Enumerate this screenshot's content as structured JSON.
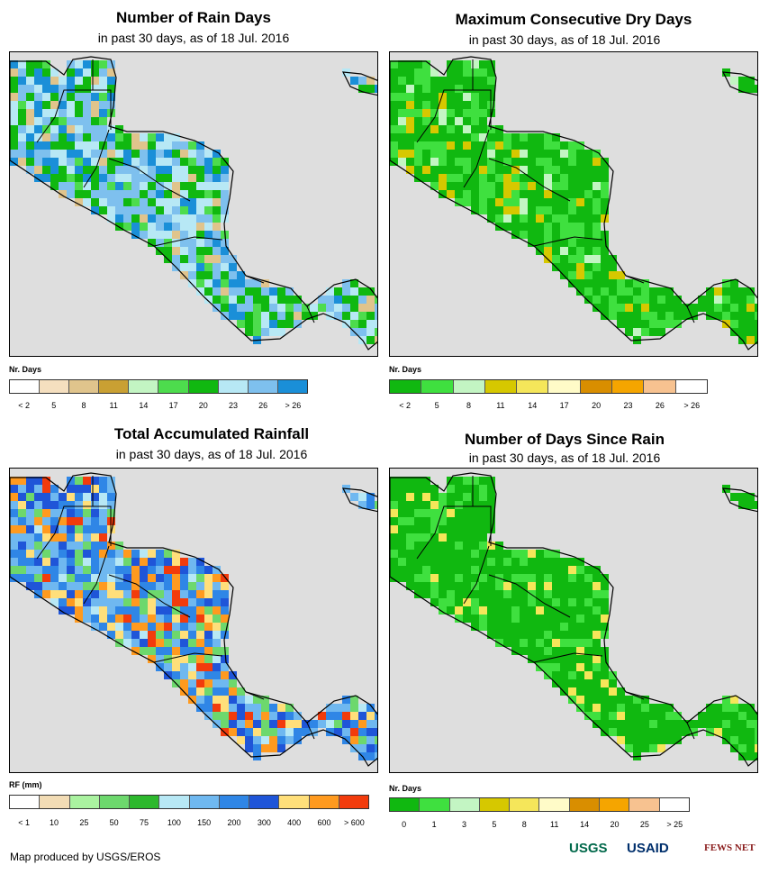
{
  "panels": [
    {
      "title": "Number of Rain Days",
      "subtitle": "in past 30 days, as of 18 Jul. 2016",
      "legend_title": "Nr. Days",
      "legend_labels": [
        "< 2",
        "5",
        "8",
        "11",
        "14",
        "17",
        "20",
        "23",
        "26",
        "> 26"
      ],
      "legend_colors": [
        "#ffffff",
        "#f5dfbf",
        "#e0c48c",
        "#c9a033",
        "#c3f5c3",
        "#4ddc4d",
        "#10b810",
        "#b7e8f5",
        "#7ec0ee",
        "#1a8fd8"
      ],
      "land_palette": [
        "#10b810",
        "#7ec0ee",
        "#b7e8f5",
        "#1a8fd8",
        "#4ddc4d",
        "#e0c48c"
      ],
      "land_weights": [
        3,
        3,
        3,
        2,
        1,
        1
      ]
    },
    {
      "title": "Maximum Consecutive Dry Days",
      "subtitle": "in past 30 days, as of 18 Jul. 2016",
      "legend_title": "Nr. Days",
      "legend_labels": [
        "< 2",
        "5",
        "8",
        "11",
        "14",
        "17",
        "20",
        "23",
        "26",
        "> 26"
      ],
      "legend_colors": [
        "#10b810",
        "#3fe03f",
        "#c3f5c3",
        "#d6c800",
        "#f5e65a",
        "#fffbc8",
        "#d98e00",
        "#f5a500",
        "#f7c290",
        "#ffffff"
      ],
      "land_palette": [
        "#10b810",
        "#3fe03f",
        "#c3f5c3",
        "#d6c800"
      ],
      "land_weights": [
        7,
        4,
        1,
        1
      ]
    },
    {
      "title": "Total Accumulated Rainfall",
      "subtitle": "in past 30 days, as of 18 Jul. 2016",
      "legend_title": "RF (mm)",
      "legend_labels": [
        "< 1",
        "10",
        "25",
        "50",
        "75",
        "100",
        "150",
        "200",
        "300",
        "400",
        "600",
        "> 600"
      ],
      "legend_colors": [
        "#ffffff",
        "#f2dcb5",
        "#aaf2a0",
        "#6dd86d",
        "#2db82d",
        "#b7e8f5",
        "#6fb8f0",
        "#2f86e6",
        "#1f55d8",
        "#ffdf7a",
        "#ff9a1f",
        "#f23b0c"
      ],
      "land_palette": [
        "#2f86e6",
        "#6fb8f0",
        "#1f55d8",
        "#ff9a1f",
        "#6dd86d",
        "#b7e8f5",
        "#ffdf7a",
        "#f23b0c"
      ],
      "land_weights": [
        3,
        3,
        2,
        2,
        2,
        1,
        1,
        1
      ]
    },
    {
      "title": "Number of Days Since Rain",
      "subtitle": "in past 30 days, as of 18 Jul. 2016",
      "legend_title": "Nr. Days",
      "legend_labels": [
        "0",
        "1",
        "3",
        "5",
        "8",
        "11",
        "14",
        "20",
        "25",
        "> 25"
      ],
      "legend_colors": [
        "#10b810",
        "#3fe03f",
        "#c3f5c3",
        "#d6c800",
        "#f5e65a",
        "#fffbc8",
        "#d98e00",
        "#f5a500",
        "#f7c290",
        "#ffffff"
      ],
      "land_palette": [
        "#10b810",
        "#3fe03f",
        "#f5e65a"
      ],
      "land_weights": [
        10,
        3,
        1
      ]
    }
  ],
  "footer": {
    "credit": "Map produced by USGS/EROS",
    "logo_usgs": "USGS",
    "logo_usaid": "USAID",
    "logo_fews": "FEWS NET"
  }
}
